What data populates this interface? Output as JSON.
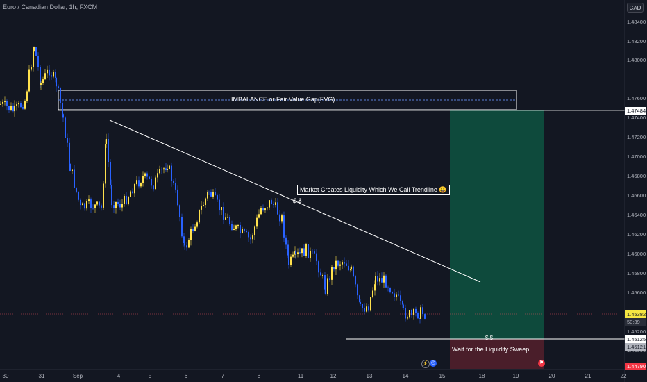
{
  "header": {
    "symbol_title": "Euro / Canadian Dollar, 1h, FXCM"
  },
  "currency_button": "CAD",
  "price_axis": {
    "ticks": [
      "1.48400",
      "1.48200",
      "1.48000",
      "1.47600",
      "1.47400",
      "1.47200",
      "1.47000",
      "1.46800",
      "1.46600",
      "1.46400",
      "1.46200",
      "1.46000",
      "1.45800",
      "1.45600",
      "1.45200",
      "1.45000"
    ]
  },
  "time_axis": {
    "ticks": [
      "30",
      "31",
      "Sep",
      "4",
      "5",
      "6",
      "7",
      "8",
      "11",
      "12",
      "13",
      "14",
      "15",
      "18",
      "19",
      "20",
      "21",
      "22"
    ]
  },
  "price_tags": {
    "fvg_level": "1.47484",
    "current_price": "1.45382",
    "countdown": "50:39",
    "level_a": "1.45125",
    "level_b": "1.45121",
    "target": "1.44790"
  },
  "annotations": {
    "fvg_label": "IMBALANCE or Fair Value Gap(FVG)",
    "trendline_label": "Market Creates Liquidity Which We Call Trendline 😀",
    "trendline_dollars": "$ $",
    "sweep_dollars": "$ $",
    "sweep_label": "Wait for the Liquidity Sweep"
  },
  "colors": {
    "background": "#131722",
    "bull_candle": "#ffe14d",
    "bear_candle": "#2962ff",
    "profit_zone": "#0e4a3c",
    "loss_zone": "#4a1e2a",
    "lines": "#ffffff"
  },
  "icons": {
    "bolt": "lightning-icon",
    "clock": "clock-icon",
    "flag": "flag-icon"
  }
}
